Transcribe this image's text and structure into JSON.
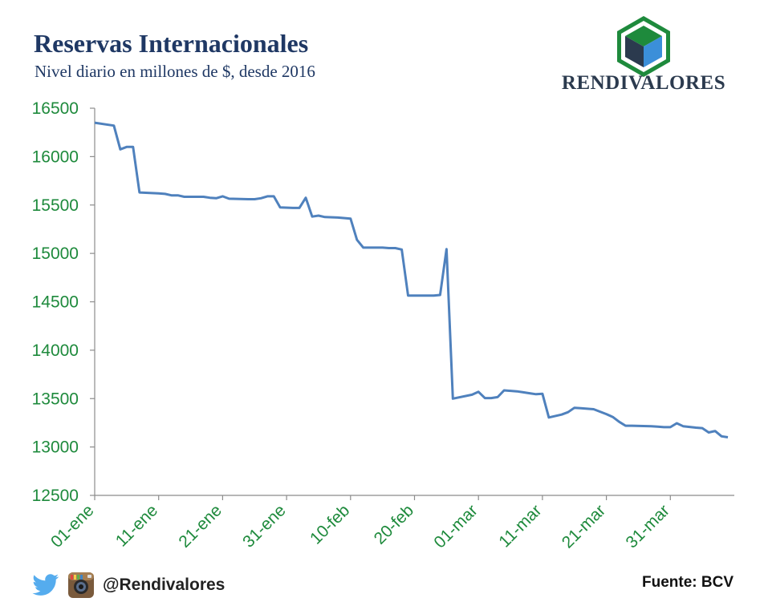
{
  "header": {
    "title": "Reservas Internacionales",
    "subtitle": "Nivel diario en millones de $, desde 2016"
  },
  "brand": {
    "name": "RENDIVALORES"
  },
  "footer": {
    "handle": "@Rendivalores",
    "source": "Fuente: BCV"
  },
  "colors": {
    "line": "#4f81bd",
    "ticks": "#1e8a3c",
    "title": "#1f3864"
  },
  "chart_data": {
    "type": "line",
    "title": "Reservas Internacionales",
    "subtitle": "Nivel diario en millones de $, desde 2016",
    "xlabel": "",
    "ylabel": "",
    "ylim": [
      12500,
      16500
    ],
    "yticks": [
      12500,
      13000,
      13500,
      14000,
      14500,
      15000,
      15500,
      16000,
      16500
    ],
    "xlim": [
      "2016-01-01",
      "2016-04-10"
    ],
    "xticks": [
      {
        "date": "2016-01-01",
        "label": "01-ene"
      },
      {
        "date": "2016-01-11",
        "label": "11-ene"
      },
      {
        "date": "2016-01-21",
        "label": "21-ene"
      },
      {
        "date": "2016-01-31",
        "label": "31-ene"
      },
      {
        "date": "2016-02-10",
        "label": "10-feb"
      },
      {
        "date": "2016-02-20",
        "label": "20-feb"
      },
      {
        "date": "2016-03-01",
        "label": "01-mar"
      },
      {
        "date": "2016-03-11",
        "label": "11-mar"
      },
      {
        "date": "2016-03-21",
        "label": "21-mar"
      },
      {
        "date": "2016-03-31",
        "label": "31-mar"
      }
    ],
    "grid": false,
    "series": [
      {
        "points": [
          [
            "2016-01-01",
            16350
          ],
          [
            "2016-01-04",
            16320
          ],
          [
            "2016-01-05",
            16075
          ],
          [
            "2016-01-06",
            16100
          ],
          [
            "2016-01-07",
            16100
          ],
          [
            "2016-01-08",
            15630
          ],
          [
            "2016-01-11",
            15620
          ],
          [
            "2016-01-12",
            15615
          ],
          [
            "2016-01-13",
            15600
          ],
          [
            "2016-01-14",
            15600
          ],
          [
            "2016-01-15",
            15585
          ],
          [
            "2016-01-18",
            15585
          ],
          [
            "2016-01-19",
            15575
          ],
          [
            "2016-01-20",
            15570
          ],
          [
            "2016-01-21",
            15590
          ],
          [
            "2016-01-22",
            15565
          ],
          [
            "2016-01-25",
            15560
          ],
          [
            "2016-01-26",
            15560
          ],
          [
            "2016-01-27",
            15570
          ],
          [
            "2016-01-28",
            15590
          ],
          [
            "2016-01-29",
            15590
          ],
          [
            "2016-01-30",
            15475
          ],
          [
            "2016-02-01",
            15470
          ],
          [
            "2016-02-02",
            15470
          ],
          [
            "2016-02-03",
            15575
          ],
          [
            "2016-02-04",
            15380
          ],
          [
            "2016-02-05",
            15390
          ],
          [
            "2016-02-06",
            15375
          ],
          [
            "2016-02-08",
            15370
          ],
          [
            "2016-02-10",
            15360
          ],
          [
            "2016-02-11",
            15140
          ],
          [
            "2016-02-12",
            15060
          ],
          [
            "2016-02-15",
            15060
          ],
          [
            "2016-02-16",
            15055
          ],
          [
            "2016-02-17",
            15055
          ],
          [
            "2016-02-18",
            15040
          ],
          [
            "2016-02-19",
            14565
          ],
          [
            "2016-02-22",
            14565
          ],
          [
            "2016-02-23",
            14565
          ],
          [
            "2016-02-24",
            14570
          ],
          [
            "2016-02-25",
            15045
          ],
          [
            "2016-02-26",
            13500
          ],
          [
            "2016-02-29",
            13540
          ],
          [
            "2016-03-01",
            13570
          ],
          [
            "2016-03-02",
            13505
          ],
          [
            "2016-03-03",
            13505
          ],
          [
            "2016-03-04",
            13515
          ],
          [
            "2016-03-05",
            13585
          ],
          [
            "2016-03-07",
            13575
          ],
          [
            "2016-03-08",
            13565
          ],
          [
            "2016-03-09",
            13555
          ],
          [
            "2016-03-10",
            13545
          ],
          [
            "2016-03-11",
            13550
          ],
          [
            "2016-03-12",
            13305
          ],
          [
            "2016-03-14",
            13335
          ],
          [
            "2016-03-15",
            13360
          ],
          [
            "2016-03-16",
            13405
          ],
          [
            "2016-03-17",
            13400
          ],
          [
            "2016-03-19",
            13390
          ],
          [
            "2016-03-21",
            13340
          ],
          [
            "2016-03-22",
            13310
          ],
          [
            "2016-03-23",
            13260
          ],
          [
            "2016-03-24",
            13220
          ],
          [
            "2016-03-25",
            13220
          ],
          [
            "2016-03-28",
            13215
          ],
          [
            "2016-03-29",
            13210
          ],
          [
            "2016-03-30",
            13205
          ],
          [
            "2016-03-31",
            13205
          ],
          [
            "2016-04-01",
            13245
          ],
          [
            "2016-04-02",
            13215
          ],
          [
            "2016-04-04",
            13200
          ],
          [
            "2016-04-05",
            13195
          ],
          [
            "2016-04-06",
            13150
          ],
          [
            "2016-04-07",
            13165
          ],
          [
            "2016-04-08",
            13110
          ],
          [
            "2016-04-09",
            13100
          ]
        ]
      }
    ]
  }
}
